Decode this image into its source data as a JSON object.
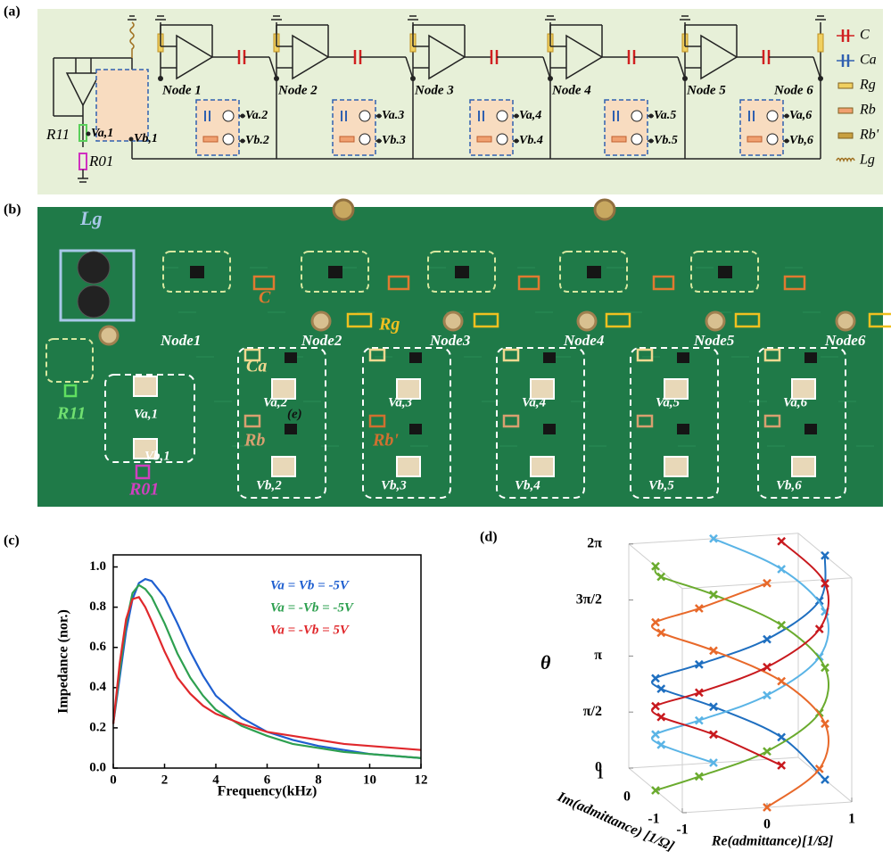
{
  "panel_labels": [
    "(a)",
    "(b)",
    "(c)",
    "(d)"
  ],
  "circuit": {
    "nodes": [
      "Node 1",
      "Node 2",
      "Node 3",
      "Node 4",
      "Node 5",
      "Node 6"
    ],
    "va": [
      "Va,1",
      "Va.2",
      "Va.3",
      "Va,4",
      "Va.5",
      "Va,6"
    ],
    "vb": [
      "Vb,1",
      "Vb.2",
      "Vb.3",
      "Vb.4",
      "Vb.5",
      "Vb,6"
    ],
    "r11": "R11",
    "r01": "R01",
    "legend": [
      "C",
      "Ca",
      "Rg",
      "Rb",
      "Rb'",
      "Lg"
    ]
  },
  "photo": {
    "lg": "Lg",
    "c": "C",
    "rg": "Rg",
    "ca": "Ca",
    "rb": "Rb",
    "rb2": "Rb'",
    "r11": "R11",
    "r01": "R01",
    "e": "(e)",
    "nodes": [
      "Node1",
      "Node2",
      "Node3",
      "Node4",
      "Node5",
      "Node6"
    ],
    "va": [
      "Va,1",
      "Va,2",
      "Va,3",
      "Va,4",
      "Va,5",
      "Va,6"
    ],
    "vb": [
      "Vb,1",
      "Vb,2",
      "Vb,3",
      "Vb,4",
      "Vb,5",
      "Vb,6"
    ]
  },
  "chart_data": [
    {
      "type": "line",
      "xlabel": "Frequency(kHz)",
      "ylabel": "Impedance (nor.)",
      "x": [
        0,
        0.25,
        0.5,
        0.75,
        1,
        1.25,
        1.5,
        2,
        2.5,
        3,
        3.5,
        4,
        5,
        6,
        7,
        8,
        9,
        10,
        11,
        12
      ],
      "series": [
        {
          "name": "Va = Vb = -5V",
          "color": "#1f5fd0",
          "values": [
            0.22,
            0.45,
            0.68,
            0.84,
            0.92,
            0.94,
            0.93,
            0.85,
            0.72,
            0.58,
            0.46,
            0.36,
            0.25,
            0.18,
            0.14,
            0.11,
            0.09,
            0.07,
            0.06,
            0.05
          ]
        },
        {
          "name": "Va = -Vb = -5V",
          "color": "#2ea050",
          "values": [
            0.22,
            0.48,
            0.72,
            0.87,
            0.91,
            0.89,
            0.85,
            0.72,
            0.57,
            0.45,
            0.36,
            0.29,
            0.21,
            0.16,
            0.12,
            0.1,
            0.08,
            0.07,
            0.06,
            0.05
          ]
        },
        {
          "name": "Va = -Vb =  5V",
          "color": "#e0282c",
          "values": [
            0.22,
            0.52,
            0.74,
            0.84,
            0.85,
            0.8,
            0.73,
            0.58,
            0.45,
            0.37,
            0.31,
            0.27,
            0.22,
            0.18,
            0.16,
            0.14,
            0.12,
            0.11,
            0.1,
            0.09
          ]
        }
      ],
      "xlim": [
        0,
        12
      ],
      "xticks": [
        0,
        2,
        4,
        6,
        8,
        10,
        12
      ],
      "ylim": [
        0,
        1.06
      ],
      "yticks": [
        {
          "value": 0,
          "label": "0.0"
        },
        {
          "value": 0.2,
          "label": "0.2"
        },
        {
          "value": 0.4,
          "label": "0.4"
        },
        {
          "value": 0.6,
          "label": "0.6"
        },
        {
          "value": 0.8,
          "label": "0.8"
        },
        {
          "value": 1,
          "label": "1.0"
        }
      ]
    },
    {
      "type": "helix3d",
      "xlabel": "Re(admittance)[1/Ω]",
      "ylabel": "Im(admittance) [1/Ω]",
      "zlabel": "θ",
      "z": [
        0,
        0.79,
        1.57,
        2.36,
        3.14,
        3.93,
        4.71,
        5.5,
        6.28
      ],
      "series": [
        {
          "color": "#1f6fc0",
          "re": [
            1,
            0.71,
            0,
            -0.71,
            -1,
            -0.71,
            0,
            0.71,
            1
          ],
          "im": [
            0,
            0.71,
            1,
            0.71,
            0,
            -0.71,
            -1,
            -0.71,
            0
          ]
        },
        {
          "color": "#5ab4e6",
          "re": [
            0,
            -0.71,
            -1,
            -0.71,
            0,
            0.71,
            1,
            0.71,
            0
          ],
          "im": [
            1,
            0.71,
            0,
            -0.71,
            -1,
            -0.71,
            0,
            0.71,
            1
          ]
        },
        {
          "color": "#6aab2e",
          "re": [
            -1,
            -0.71,
            0,
            0.71,
            1,
            0.71,
            0,
            -0.71,
            -1
          ],
          "im": [
            0,
            -0.71,
            -1,
            -0.71,
            0,
            0.71,
            1,
            0.71,
            0
          ]
        },
        {
          "color": "#e8692a",
          "re": [
            0,
            0.71,
            1,
            0.71,
            0,
            -0.71,
            -1,
            -0.71,
            0
          ],
          "im": [
            -1,
            -0.71,
            0,
            0.71,
            1,
            0.71,
            0,
            -0.71,
            -1
          ]
        },
        {
          "color": "#c8191e",
          "re": [
            0.71,
            0,
            -0.71,
            -1,
            -0.71,
            0,
            0.71,
            1,
            0.71
          ],
          "im": [
            0.71,
            1,
            0.71,
            0,
            -0.71,
            -1,
            -0.71,
            0,
            0.71
          ]
        }
      ],
      "xlim": [
        -1,
        1
      ],
      "xticks": [
        -1,
        0,
        1
      ],
      "ylim": [
        -1,
        1
      ],
      "yticks": [
        -1,
        0,
        1
      ],
      "zlim": [
        0,
        6.28
      ],
      "zticks": [
        0,
        {
          "value": 1.57,
          "label": "π/2"
        },
        {
          "value": 3.14,
          "label": "π"
        },
        {
          "value": 4.71,
          "label": "3π/2"
        },
        {
          "value": 6.28,
          "label": "2π"
        }
      ]
    }
  ]
}
